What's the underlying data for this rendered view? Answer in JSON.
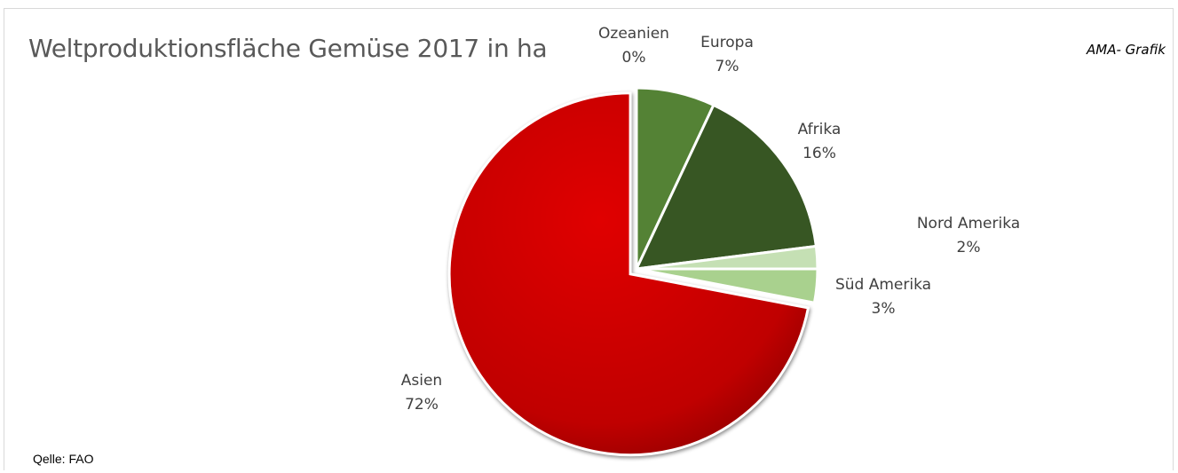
{
  "watermark": "AMA- Grafik",
  "source_note": "Qelle: FAO",
  "chart_data": {
    "type": "pie",
    "title": "Weltproduktionsfläche Gemüse 2017 in ha",
    "slices": [
      {
        "name": "Europa",
        "value": 7,
        "label": "7%",
        "color": "#548235"
      },
      {
        "name": "Afrika",
        "value": 16,
        "label": "16%",
        "color": "#375623"
      },
      {
        "name": "Nord Amerika",
        "value": 2,
        "label": "2%",
        "color": "#c5e0b4"
      },
      {
        "name": "Süd Amerika",
        "value": 3,
        "label": "3%",
        "color": "#a9d18e"
      },
      {
        "name": "Asien",
        "value": 72,
        "label": "72%",
        "color": "#c00000",
        "exploded": true
      },
      {
        "name": "Ozeanien",
        "value": 0,
        "label": "0%",
        "color": "#70ad47"
      }
    ]
  }
}
